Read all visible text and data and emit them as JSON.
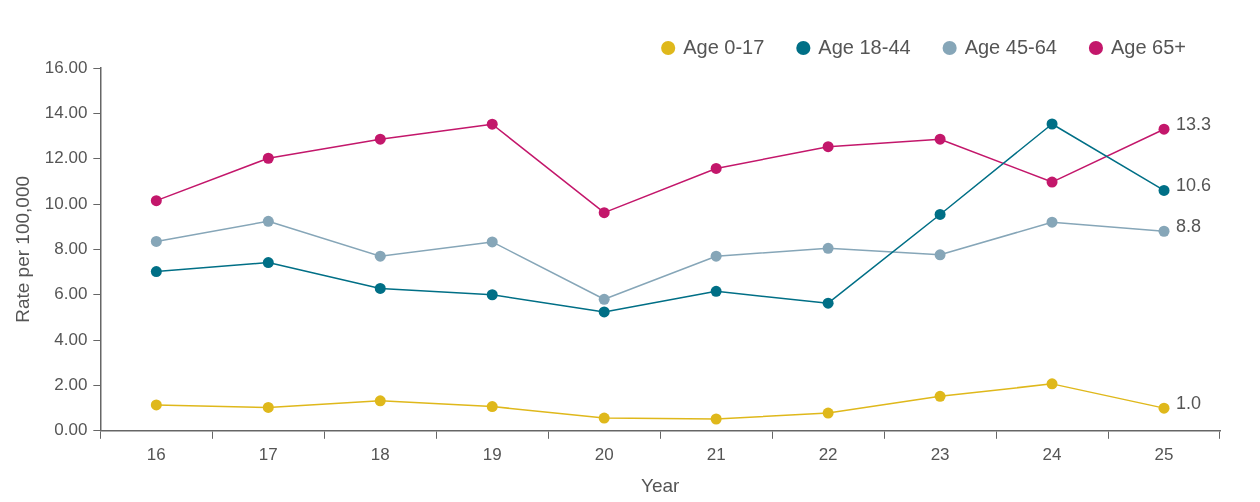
{
  "chart_data": {
    "type": "line",
    "xlabel": "Year",
    "ylabel": "Rate per 100,000",
    "categories": [
      "16",
      "17",
      "18",
      "19",
      "20",
      "21",
      "22",
      "23",
      "24",
      "25"
    ],
    "series": [
      {
        "name": "Age 0-17",
        "color": "#dfb81b",
        "values": [
          1.14,
          1.03,
          1.32,
          1.07,
          0.56,
          0.52,
          0.78,
          1.52,
          2.07,
          1.0
        ],
        "value_labels": [
          null,
          null,
          null,
          null,
          null,
          null,
          null,
          null,
          null,
          "1.0"
        ]
      },
      {
        "name": "Age 18-44",
        "color": "#006f86",
        "values": [
          7.02,
          7.42,
          6.28,
          6.0,
          5.24,
          6.15,
          5.63,
          9.54,
          13.53,
          10.6
        ],
        "value_labels": [
          null,
          null,
          null,
          null,
          null,
          null,
          null,
          null,
          null,
          "10.6"
        ]
      },
      {
        "name": "Age 45-64",
        "color": "#86a6b8",
        "values": [
          8.35,
          9.24,
          7.7,
          8.33,
          5.8,
          7.7,
          8.05,
          7.76,
          9.2,
          8.8
        ],
        "value_labels": [
          null,
          null,
          null,
          null,
          null,
          null,
          null,
          null,
          null,
          "8.8"
        ]
      },
      {
        "name": "Age 65+",
        "color": "#c3176b",
        "values": [
          10.15,
          12.02,
          12.86,
          13.52,
          9.62,
          11.57,
          12.53,
          12.86,
          10.97,
          13.3
        ],
        "value_labels": [
          null,
          null,
          null,
          null,
          null,
          null,
          null,
          null,
          null,
          "13.3"
        ]
      }
    ],
    "ylim": [
      0,
      16
    ],
    "yticks": [
      {
        "value": 0,
        "label": "0.00"
      },
      {
        "value": 2,
        "label": "2.00"
      },
      {
        "value": 4,
        "label": "4.00"
      },
      {
        "value": 6,
        "label": "6.00"
      },
      {
        "value": 8,
        "label": "8.00"
      },
      {
        "value": 10,
        "label": "10.00"
      },
      {
        "value": 12,
        "label": "12.00"
      },
      {
        "value": 14,
        "label": "14.00"
      },
      {
        "value": 16,
        "label": "16.00"
      }
    ],
    "grid": false,
    "legend": "top",
    "marker": "circle",
    "line_style": "solid"
  }
}
